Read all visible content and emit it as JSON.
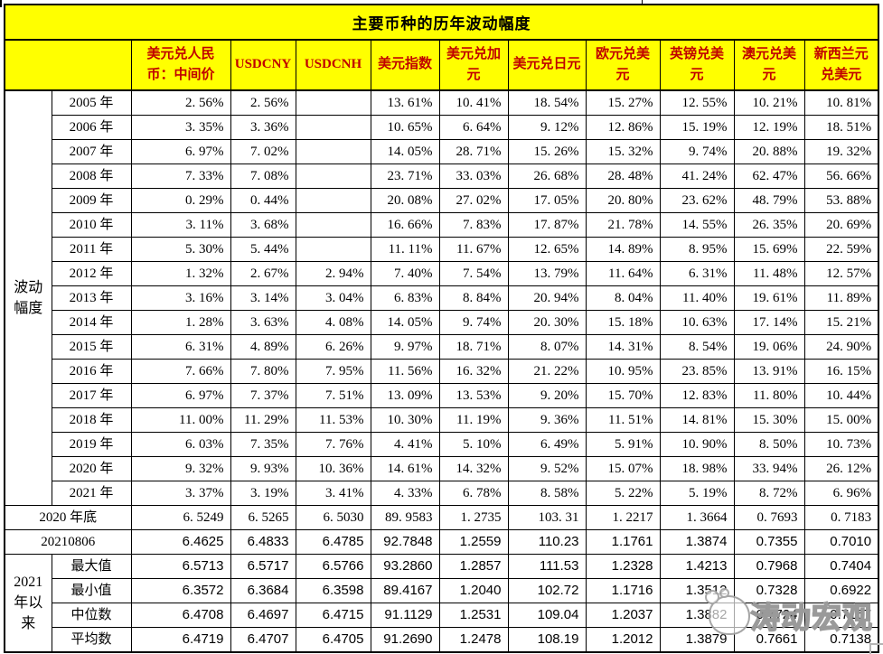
{
  "colors": {
    "banner_bg": "#FFFF00",
    "header_text": "#C00000",
    "title_text": "#000000",
    "grid_line": "#000000",
    "watermark": "#919191"
  },
  "watermark": {
    "text": "涛动宏观",
    "logo": "mascot-icon"
  },
  "chart_data": {
    "type": "table",
    "title": "主要币种的历年波动幅度",
    "columns": [
      "美元兑人民币：中间价",
      "USDCNY",
      "USDCNH",
      "美元指数",
      "美元兑加元",
      "美元兑日元",
      "欧元兑美元",
      "英镑兑美元",
      "澳元兑美元",
      "新西兰元兑美元"
    ],
    "volatility": {
      "group_label": "波动幅度",
      "rows": [
        {
          "label": "2005 年",
          "values": [
            "2. 56%",
            "2. 56%",
            "",
            "13. 61%",
            "10. 41%",
            "18. 54%",
            "15. 27%",
            "12. 55%",
            "10. 21%",
            "10. 81%"
          ]
        },
        {
          "label": "2006 年",
          "values": [
            "3. 35%",
            "3. 36%",
            "",
            "10. 65%",
            "6. 64%",
            "9. 12%",
            "12. 86%",
            "15. 19%",
            "12. 19%",
            "18. 51%"
          ]
        },
        {
          "label": "2007 年",
          "values": [
            "6. 97%",
            "7. 02%",
            "",
            "14. 05%",
            "28. 71%",
            "15. 26%",
            "15. 32%",
            "9. 74%",
            "20. 88%",
            "19. 32%"
          ]
        },
        {
          "label": "2008 年",
          "values": [
            "7. 33%",
            "7. 08%",
            "",
            "23. 71%",
            "33. 03%",
            "26. 68%",
            "28. 48%",
            "41. 24%",
            "62. 47%",
            "56. 66%"
          ]
        },
        {
          "label": "2009 年",
          "values": [
            "0. 29%",
            "0. 44%",
            "",
            "20. 08%",
            "27. 02%",
            "17. 05%",
            "20. 80%",
            "23. 62%",
            "48. 79%",
            "53. 88%"
          ]
        },
        {
          "label": "2010 年",
          "values": [
            "3. 11%",
            "3. 68%",
            "",
            "16. 66%",
            "7. 83%",
            "17. 87%",
            "21. 78%",
            "14. 55%",
            "26. 35%",
            "20. 69%"
          ]
        },
        {
          "label": "2011 年",
          "values": [
            "5. 30%",
            "5. 44%",
            "",
            "11. 11%",
            "11. 67%",
            "12. 65%",
            "14. 89%",
            "8. 95%",
            "15. 69%",
            "22. 59%"
          ]
        },
        {
          "label": "2012 年",
          "values": [
            "1. 32%",
            "2. 67%",
            "2. 94%",
            "7. 40%",
            "7. 54%",
            "13. 79%",
            "11. 64%",
            "6. 31%",
            "11. 48%",
            "12. 57%"
          ]
        },
        {
          "label": "2013 年",
          "values": [
            "3. 16%",
            "3. 14%",
            "3. 04%",
            "6. 83%",
            "8. 84%",
            "20. 94%",
            "8. 04%",
            "11. 40%",
            "19. 61%",
            "11. 89%"
          ]
        },
        {
          "label": "2014 年",
          "values": [
            "1. 28%",
            "3. 63%",
            "4. 08%",
            "14. 05%",
            "9. 74%",
            "20. 30%",
            "15. 18%",
            "10. 63%",
            "17. 14%",
            "15. 21%"
          ]
        },
        {
          "label": "2015 年",
          "values": [
            "6. 31%",
            "4. 89%",
            "6. 26%",
            "9. 97%",
            "18. 71%",
            "8. 07%",
            "14. 31%",
            "8. 54%",
            "19. 06%",
            "24. 90%"
          ]
        },
        {
          "label": "2016 年",
          "values": [
            "7. 66%",
            "7. 80%",
            "7. 95%",
            "11. 56%",
            "16. 32%",
            "21. 22%",
            "10. 95%",
            "23. 85%",
            "13. 91%",
            "16. 15%"
          ]
        },
        {
          "label": "2017 年",
          "values": [
            "6. 97%",
            "7. 37%",
            "7. 51%",
            "13. 09%",
            "13. 53%",
            "9. 20%",
            "15. 70%",
            "12. 83%",
            "11. 80%",
            "10. 44%"
          ]
        },
        {
          "label": "2018 年",
          "values": [
            "11. 00%",
            "11. 29%",
            "11. 53%",
            "10. 30%",
            "11. 19%",
            "9. 36%",
            "11. 51%",
            "14. 81%",
            "15. 30%",
            "15. 00%"
          ]
        },
        {
          "label": "2019 年",
          "values": [
            "6. 03%",
            "7. 35%",
            "7. 76%",
            "4. 41%",
            "5. 10%",
            "6. 49%",
            "5. 91%",
            "10. 90%",
            "8. 50%",
            "10. 73%"
          ]
        },
        {
          "label": "2020 年",
          "values": [
            "9. 32%",
            "9. 93%",
            "10. 36%",
            "14. 61%",
            "14. 32%",
            "9. 52%",
            "15. 07%",
            "18. 98%",
            "33. 94%",
            "26. 12%"
          ]
        },
        {
          "label": "2021 年",
          "values": [
            "3. 37%",
            "3. 19%",
            "3. 41%",
            "4. 33%",
            "6. 78%",
            "8. 58%",
            "5. 22%",
            "5. 19%",
            "8. 72%",
            "6. 96%"
          ]
        }
      ]
    },
    "snapshot_rows": [
      {
        "label": "2020 年底",
        "style": "serif",
        "values": [
          "6. 5249",
          "6. 5265",
          "6. 5030",
          "89. 9583",
          "1. 2735",
          "103. 31",
          "1. 2217",
          "1. 3664",
          "0. 7693",
          "0. 7183"
        ]
      },
      {
        "label": "20210806",
        "style": "sans",
        "values": [
          "6.4625",
          "6.4833",
          "6.4785",
          "92.7848",
          "1.2559",
          "110.23",
          "1.1761",
          "1.3874",
          "0.7355",
          "0.7010"
        ]
      }
    ],
    "since_2021": {
      "group_label": "2021年以来",
      "rows": [
        {
          "label": "最大值",
          "values": [
            "6.5713",
            "6.5717",
            "6.5766",
            "93.2860",
            "1.2857",
            "111.53",
            "1.2328",
            "1.4213",
            "0.7968",
            "0.7404"
          ]
        },
        {
          "label": "最小值",
          "values": [
            "6.3572",
            "6.3684",
            "6.3598",
            "89.4167",
            "1.2040",
            "102.72",
            "1.1716",
            "1.3512",
            "0.7328",
            "0.6922"
          ]
        },
        {
          "label": "中位数",
          "values": [
            "6.4708",
            "6.4697",
            "6.4715",
            "91.1129",
            "1.2531",
            "109.04",
            "1.2037",
            "1.3882",
            "0.7724",
            "0.7167"
          ]
        },
        {
          "label": "平均数",
          "values": [
            "6.4719",
            "6.4707",
            "6.4705",
            "91.2690",
            "1.2478",
            "108.19",
            "1.2012",
            "1.3879",
            "0.7661",
            "0.7138"
          ]
        }
      ]
    }
  }
}
